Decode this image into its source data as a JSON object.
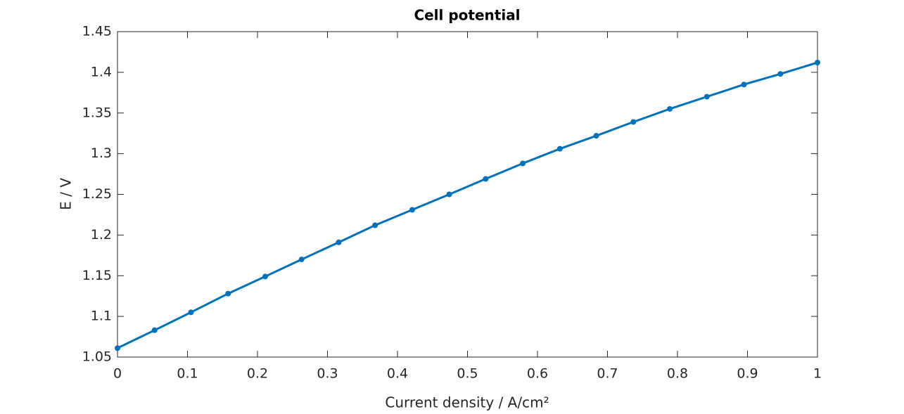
{
  "chart_data": {
    "type": "line",
    "title": "Cell potential",
    "xlabel": "Current density / A/cm²",
    "ylabel": "E / V",
    "x": [
      0,
      0.053,
      0.105,
      0.158,
      0.211,
      0.263,
      0.316,
      0.368,
      0.421,
      0.474,
      0.526,
      0.579,
      0.632,
      0.684,
      0.737,
      0.789,
      0.842,
      0.895,
      0.947,
      1
    ],
    "series": [
      {
        "color": "#0072bd",
        "values": [
          1.061,
          1.083,
          1.105,
          1.128,
          1.149,
          1.17,
          1.191,
          1.212,
          1.231,
          1.25,
          1.269,
          1.288,
          1.306,
          1.322,
          1.339,
          1.355,
          1.37,
          1.385,
          1.398,
          1.412
        ]
      }
    ],
    "xlim": [
      0,
      1
    ],
    "xticks": [
      0,
      0.1,
      0.2,
      0.3,
      0.4,
      0.5,
      0.6,
      0.7,
      0.8,
      0.9,
      1
    ],
    "ylim": [
      1.05,
      1.45
    ],
    "yticks": [
      1.05,
      1.1,
      1.15,
      1.2,
      1.25,
      1.3,
      1.35,
      1.4,
      1.45
    ],
    "grid": false
  }
}
